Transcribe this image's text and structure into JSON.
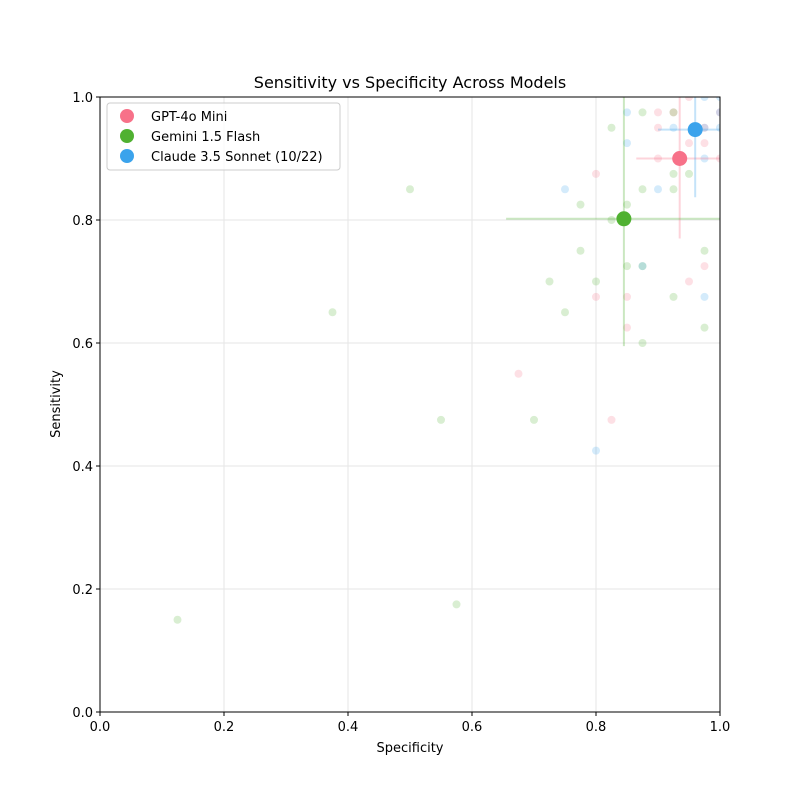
{
  "chart_data": {
    "type": "scatter",
    "title": "Sensitivity vs Specificity Across Models",
    "xlabel": "Specificity",
    "ylabel": "Sensitivity",
    "xlim": [
      0,
      1
    ],
    "ylim": [
      0,
      1
    ],
    "xticks": [
      "0.0",
      "0.2",
      "0.4",
      "0.6",
      "0.8",
      "1.0"
    ],
    "yticks": [
      "0.0",
      "0.2",
      "0.4",
      "0.6",
      "0.8",
      "1.0"
    ],
    "grid": true,
    "legend_position": "top-left",
    "series": [
      {
        "name": "GPT-4o Mini",
        "color": "#f77189",
        "mean": {
          "x": 0.935,
          "y": 0.9
        },
        "x_err": [
          0.865,
          1.0
        ],
        "y_err": [
          0.77,
          1.0
        ],
        "points": [
          [
            0.675,
            0.55
          ],
          [
            0.825,
            0.475
          ],
          [
            0.8,
            0.875
          ],
          [
            0.8,
            0.675
          ],
          [
            0.85,
            0.675
          ],
          [
            0.85,
            0.625
          ],
          [
            0.95,
            0.7
          ],
          [
            0.975,
            0.725
          ],
          [
            0.9,
            0.9
          ],
          [
            0.9,
            0.975
          ],
          [
            0.9,
            0.95
          ],
          [
            0.925,
            0.975
          ],
          [
            0.95,
            0.925
          ],
          [
            0.975,
            0.925
          ],
          [
            0.975,
            0.95
          ],
          [
            1.0,
            0.9
          ],
          [
            0.95,
            1.0
          ],
          [
            1.0,
            0.975
          ]
        ]
      },
      {
        "name": "Gemini 1.5 Flash",
        "color": "#50b131",
        "mean": {
          "x": 0.845,
          "y": 0.802
        },
        "x_err": [
          0.655,
          1.0
        ],
        "y_err": [
          0.595,
          1.0
        ],
        "points": [
          [
            0.125,
            0.15
          ],
          [
            0.375,
            0.65
          ],
          [
            0.5,
            0.85
          ],
          [
            0.55,
            0.475
          ],
          [
            0.575,
            0.175
          ],
          [
            0.7,
            0.475
          ],
          [
            0.725,
            0.7
          ],
          [
            0.75,
            0.65
          ],
          [
            0.775,
            0.825
          ],
          [
            0.775,
            0.75
          ],
          [
            0.8,
            0.7
          ],
          [
            0.825,
            0.8
          ],
          [
            0.85,
            0.825
          ],
          [
            0.85,
            0.725
          ],
          [
            0.875,
            0.85
          ],
          [
            0.875,
            0.725
          ],
          [
            0.875,
            0.6
          ],
          [
            0.925,
            0.875
          ],
          [
            0.925,
            0.85
          ],
          [
            0.925,
            0.675
          ],
          [
            0.95,
            0.875
          ],
          [
            0.975,
            0.75
          ],
          [
            0.975,
            0.625
          ],
          [
            0.825,
            0.95
          ],
          [
            0.875,
            0.975
          ],
          [
            0.925,
            0.975
          ]
        ]
      },
      {
        "name": "Claude 3.5 Sonnet (10/22)",
        "color": "#3ba3ec",
        "mean": {
          "x": 0.96,
          "y": 0.947
        },
        "x_err": [
          0.9,
          1.0
        ],
        "y_err": [
          0.837,
          1.0
        ],
        "points": [
          [
            0.75,
            0.85
          ],
          [
            0.8,
            0.425
          ],
          [
            0.85,
            0.975
          ],
          [
            0.85,
            0.925
          ],
          [
            0.9,
            0.85
          ],
          [
            0.925,
            0.95
          ],
          [
            0.975,
            0.675
          ],
          [
            0.975,
            0.9
          ],
          [
            0.975,
            1.0
          ],
          [
            1.0,
            0.95
          ],
          [
            1.0,
            1.0
          ],
          [
            0.975,
            0.95
          ],
          [
            1.0,
            0.975
          ],
          [
            0.875,
            0.725
          ]
        ]
      }
    ]
  }
}
